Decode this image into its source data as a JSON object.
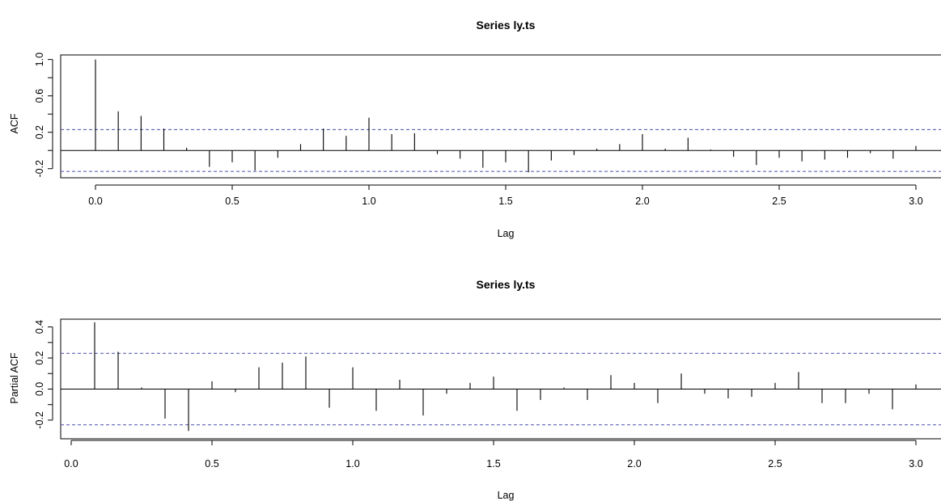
{
  "chart_data": [
    {
      "type": "bar",
      "title": "Series ly.ts",
      "xlabel": "Lag",
      "ylabel": "ACF",
      "xlim": [
        -0.1,
        3.1
      ],
      "ylim": [
        -0.3,
        1.05
      ],
      "x_ticks": [
        "0.0",
        "0.5",
        "1.0",
        "1.5",
        "2.0",
        "2.5",
        "3.0"
      ],
      "y_ticks": [
        "-0.2",
        "0.2",
        "0.6",
        "1.0"
      ],
      "confidence_limits": [
        0.23,
        -0.23
      ],
      "x": [
        0.0,
        0.0833,
        0.1667,
        0.25,
        0.3333,
        0.4167,
        0.5,
        0.5833,
        0.6667,
        0.75,
        0.8333,
        0.9167,
        1.0,
        1.0833,
        1.1667,
        1.25,
        1.3333,
        1.4167,
        1.5,
        1.5833,
        1.6667,
        1.75,
        1.8333,
        1.9167,
        2.0,
        2.0833,
        2.1667,
        2.25,
        2.3333,
        2.4167,
        2.5,
        2.5833,
        2.6667,
        2.75,
        2.8333,
        2.9167,
        3.0
      ],
      "values": [
        1.0,
        0.43,
        0.38,
        0.24,
        0.03,
        -0.18,
        -0.13,
        -0.22,
        -0.08,
        0.07,
        0.24,
        0.16,
        0.36,
        0.18,
        0.19,
        -0.04,
        -0.09,
        -0.19,
        -0.13,
        -0.24,
        -0.11,
        -0.05,
        0.02,
        0.07,
        0.18,
        0.02,
        0.14,
        0.01,
        -0.07,
        -0.16,
        -0.08,
        -0.12,
        -0.1,
        -0.08,
        -0.03,
        -0.09,
        0.05
      ]
    },
    {
      "type": "bar",
      "title": "Series ly.ts",
      "xlabel": "Lag",
      "ylabel": "Partial ACF",
      "xlim": [
        -0.05,
        3.1
      ],
      "ylim": [
        -0.32,
        0.45
      ],
      "x_ticks": [
        "0.0",
        "0.5",
        "1.0",
        "1.5",
        "2.0",
        "2.5",
        "3.0"
      ],
      "y_ticks": [
        "-0.2",
        "0.0",
        "0.2",
        "0.4"
      ],
      "confidence_limits": [
        0.23,
        -0.23
      ],
      "x": [
        0.0833,
        0.1667,
        0.25,
        0.3333,
        0.4167,
        0.5,
        0.5833,
        0.6667,
        0.75,
        0.8333,
        0.9167,
        1.0,
        1.0833,
        1.1667,
        1.25,
        1.3333,
        1.4167,
        1.5,
        1.5833,
        1.6667,
        1.75,
        1.8333,
        1.9167,
        2.0,
        2.0833,
        2.1667,
        2.25,
        2.3333,
        2.4167,
        2.5,
        2.5833,
        2.6667,
        2.75,
        2.8333,
        2.9167,
        3.0
      ],
      "values": [
        0.43,
        0.24,
        0.01,
        -0.19,
        -0.27,
        0.05,
        -0.02,
        0.14,
        0.17,
        0.21,
        -0.12,
        0.14,
        -0.14,
        0.06,
        -0.17,
        -0.03,
        0.04,
        0.08,
        -0.14,
        -0.07,
        0.01,
        -0.07,
        0.09,
        0.04,
        -0.09,
        0.1,
        -0.03,
        -0.06,
        -0.05,
        0.04,
        0.11,
        -0.09,
        -0.09,
        -0.03,
        -0.13,
        0.03
      ]
    }
  ]
}
